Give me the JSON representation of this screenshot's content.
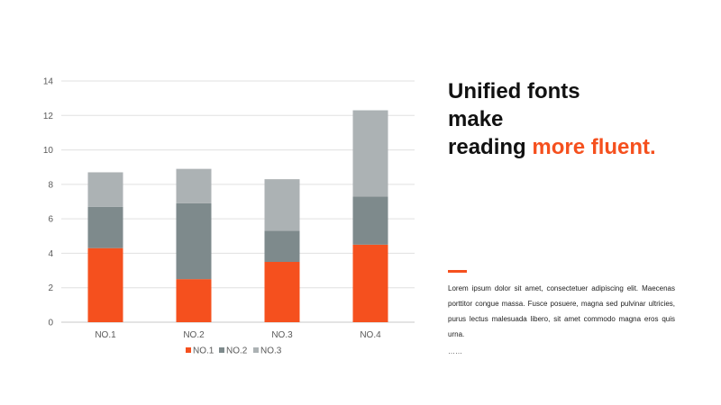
{
  "chart_data": {
    "type": "bar",
    "stacked": true,
    "categories": [
      "NO.1",
      "NO.2",
      "NO.3",
      "NO.4"
    ],
    "series": [
      {
        "name": "NO.1",
        "values": [
          4.3,
          2.5,
          3.5,
          4.5
        ],
        "color": "#f5501e"
      },
      {
        "name": "NO.2",
        "values": [
          2.4,
          4.4,
          1.8,
          2.8
        ],
        "color": "#7e8a8c"
      },
      {
        "name": "NO.3",
        "values": [
          2.0,
          2.0,
          3.0,
          5.0
        ],
        "color": "#acb2b4"
      }
    ],
    "ylim": [
      0,
      14
    ],
    "yticks": [
      "0",
      "2",
      "4",
      "6",
      "8",
      "10",
      "12",
      "14"
    ],
    "grid": true,
    "legend_position": "bottom"
  },
  "text_panel": {
    "headline_line1": "Unified fonts",
    "headline_line2": "make",
    "headline_line3_plain": "reading ",
    "headline_line3_accent": "more fluent.",
    "accent_color": "#f5501e",
    "body": "Lorem ipsum dolor sit amet, consectetuer adipiscing elit. Maecenas porttitor congue massa. Fusce posuere, magna sed pulvinar ultricies, purus lectus malesuada libero, sit amet commodo magna eros quis urna.",
    "ellipsis": "……"
  }
}
